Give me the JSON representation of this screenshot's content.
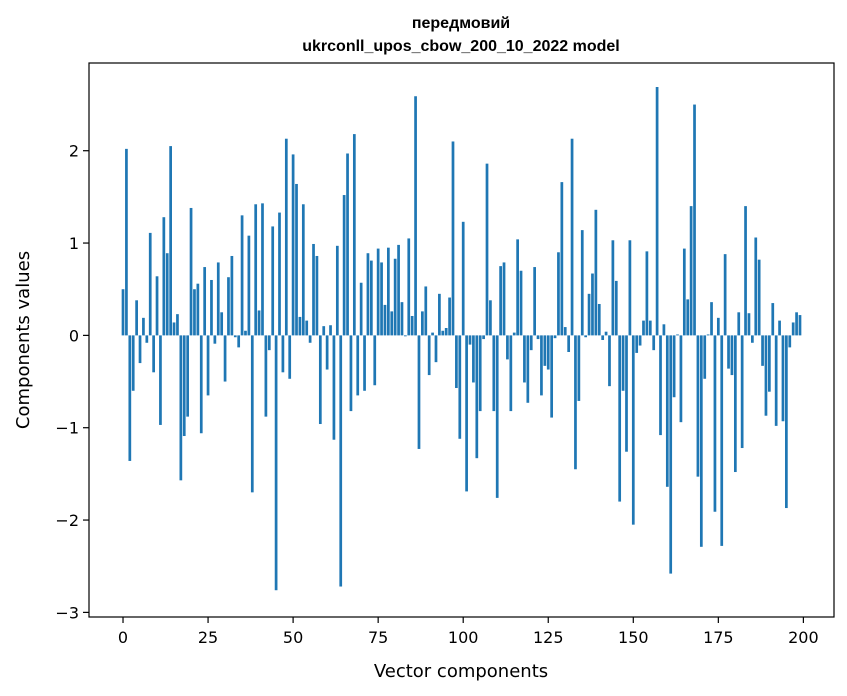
{
  "chart_data": {
    "type": "bar",
    "title_line1": "передмовий",
    "title_line2": "ukrconll_upos_cbow_200_10_2022 model",
    "xlabel": "Vector components",
    "ylabel": "Components values",
    "xlim": [
      -10,
      209
    ],
    "ylim": [
      -3.05,
      2.95
    ],
    "xticks": [
      0,
      25,
      50,
      75,
      100,
      125,
      150,
      175,
      200
    ],
    "xtick_labels": [
      "0",
      "25",
      "50",
      "75",
      "100",
      "125",
      "150",
      "175",
      "200"
    ],
    "yticks": [
      -3,
      -2,
      -1,
      0,
      1,
      2
    ],
    "ytick_labels": [
      "−3",
      "−2",
      "−1",
      "0",
      "1",
      "2"
    ],
    "bar_color": "#1f77b4",
    "x": [
      0,
      1,
      2,
      3,
      4,
      5,
      6,
      7,
      8,
      9,
      10,
      11,
      12,
      13,
      14,
      15,
      16,
      17,
      18,
      19,
      20,
      21,
      22,
      23,
      24,
      25,
      26,
      27,
      28,
      29,
      30,
      31,
      32,
      33,
      34,
      35,
      36,
      37,
      38,
      39,
      40,
      41,
      42,
      43,
      44,
      45,
      46,
      47,
      48,
      49,
      50,
      51,
      52,
      53,
      54,
      55,
      56,
      57,
      58,
      59,
      60,
      61,
      62,
      63,
      64,
      65,
      66,
      67,
      68,
      69,
      70,
      71,
      72,
      73,
      74,
      75,
      76,
      77,
      78,
      79,
      80,
      81,
      82,
      83,
      84,
      85,
      86,
      87,
      88,
      89,
      90,
      91,
      92,
      93,
      94,
      95,
      96,
      97,
      98,
      99,
      100,
      101,
      102,
      103,
      104,
      105,
      106,
      107,
      108,
      109,
      110,
      111,
      112,
      113,
      114,
      115,
      116,
      117,
      118,
      119,
      120,
      121,
      122,
      123,
      124,
      125,
      126,
      127,
      128,
      129,
      130,
      131,
      132,
      133,
      134,
      135,
      136,
      137,
      138,
      139,
      140,
      141,
      142,
      143,
      144,
      145,
      146,
      147,
      148,
      149,
      150,
      151,
      152,
      153,
      154,
      155,
      156,
      157,
      158,
      159,
      160,
      161,
      162,
      163,
      164,
      165,
      166,
      167,
      168,
      169,
      170,
      171,
      172,
      173,
      174,
      175,
      176,
      177,
      178,
      179,
      180,
      181,
      182,
      183,
      184,
      185,
      186,
      187,
      188,
      189,
      190,
      191,
      192,
      193,
      194,
      195,
      196,
      197,
      198,
      199
    ],
    "values": [
      0.5,
      2.02,
      -1.36,
      -0.6,
      0.38,
      -0.3,
      0.19,
      -0.08,
      1.11,
      -0.4,
      0.64,
      -0.97,
      1.28,
      0.89,
      2.05,
      0.14,
      0.23,
      -1.57,
      -1.09,
      -0.88,
      1.38,
      0.5,
      0.56,
      -1.06,
      0.74,
      -0.65,
      0.6,
      -0.09,
      0.79,
      0.25,
      -0.5,
      0.63,
      0.86,
      -0.02,
      -0.13,
      1.3,
      0.05,
      1.08,
      -1.7,
      1.42,
      0.27,
      1.43,
      -0.88,
      -0.16,
      1.18,
      -2.76,
      1.33,
      -0.4,
      2.13,
      -0.47,
      1.96,
      1.64,
      0.2,
      1.42,
      0.16,
      -0.08,
      0.99,
      0.86,
      -0.96,
      0.1,
      -0.37,
      0.11,
      -1.13,
      0.97,
      -2.72,
      1.52,
      1.97,
      -0.82,
      2.18,
      -0.65,
      0.57,
      -0.6,
      0.89,
      0.81,
      -0.54,
      0.94,
      0.79,
      0.33,
      0.95,
      0.26,
      0.83,
      0.98,
      0.36,
      -0.01,
      1.05,
      0.21,
      2.59,
      -1.23,
      0.26,
      0.53,
      -0.43,
      0.03,
      -0.29,
      0.45,
      0.05,
      0.08,
      0.41,
      2.1,
      -0.57,
      -1.12,
      1.23,
      -1.69,
      -0.1,
      -0.51,
      -1.33,
      -0.82,
      -0.04,
      1.86,
      0.38,
      -0.82,
      -1.76,
      0.75,
      0.79,
      -0.26,
      -0.82,
      0.03,
      1.04,
      0.7,
      -0.51,
      -0.73,
      -0.16,
      0.74,
      -0.04,
      -0.65,
      -0.33,
      -0.37,
      -0.89,
      -0.03,
      0.9,
      1.66,
      0.09,
      -0.18,
      2.13,
      -1.45,
      -0.71,
      1.14,
      -0.02,
      0.45,
      0.67,
      1.36,
      0.34,
      -0.05,
      0.04,
      -0.55,
      1.03,
      0.59,
      -1.8,
      -0.6,
      -1.26,
      1.03,
      -2.05,
      -0.19,
      -0.11,
      0.16,
      0.91,
      0.16,
      -0.16,
      2.69,
      -1.08,
      0.12,
      -1.64,
      -2.58,
      -0.67,
      0.01,
      -0.94,
      0.94,
      0.39,
      1.4,
      2.5,
      -1.53,
      -2.29,
      -0.47,
      0.01,
      0.36,
      -1.91,
      0.19,
      -2.28,
      0.88,
      -0.36,
      -0.43,
      -1.48,
      0.25,
      -1.22,
      1.4,
      0.24,
      -0.08,
      1.06,
      0.82,
      -0.33,
      -0.87,
      -0.61,
      0.35,
      -0.98,
      0.16,
      -0.93,
      -1.87,
      -0.13,
      0.14,
      0.25,
      0.22
    ],
    "grid": false
  }
}
